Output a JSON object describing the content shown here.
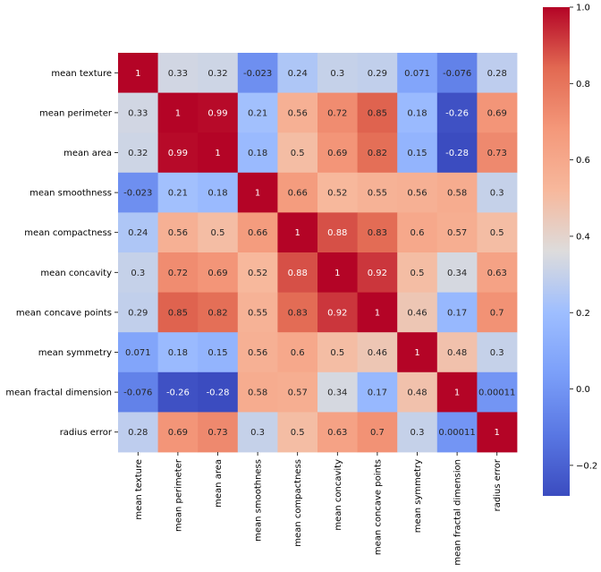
{
  "chart_data": {
    "type": "heatmap",
    "title": "",
    "xlabel": "",
    "ylabel": "",
    "colormap": "coolwarm",
    "vmin": -0.28,
    "vmax": 1.0,
    "rows": [
      "mean texture",
      "mean perimeter",
      "mean area",
      "mean smoothness",
      "mean compactness",
      "mean concavity",
      "mean concave points",
      "mean symmetry",
      "mean fractal dimension",
      "radius error"
    ],
    "columns": [
      "mean texture",
      "mean perimeter",
      "mean area",
      "mean smoothness",
      "mean compactness",
      "mean concavity",
      "mean concave points",
      "mean symmetry",
      "mean fractal dimension",
      "radius error"
    ],
    "values": [
      [
        1,
        0.33,
        0.32,
        -0.023,
        0.24,
        0.3,
        0.29,
        0.071,
        -0.076,
        0.28
      ],
      [
        0.33,
        1,
        0.99,
        0.21,
        0.56,
        0.72,
        0.85,
        0.18,
        -0.26,
        0.69
      ],
      [
        0.32,
        0.99,
        1,
        0.18,
        0.5,
        0.69,
        0.82,
        0.15,
        -0.28,
        0.73
      ],
      [
        -0.023,
        0.21,
        0.18,
        1,
        0.66,
        0.52,
        0.55,
        0.56,
        0.58,
        0.3
      ],
      [
        0.24,
        0.56,
        0.5,
        0.66,
        1,
        0.88,
        0.83,
        0.6,
        0.57,
        0.5
      ],
      [
        0.3,
        0.72,
        0.69,
        0.52,
        0.88,
        1,
        0.92,
        0.5,
        0.34,
        0.63
      ],
      [
        0.29,
        0.85,
        0.82,
        0.55,
        0.83,
        0.92,
        1,
        0.46,
        0.17,
        0.7
      ],
      [
        0.071,
        0.18,
        0.15,
        0.56,
        0.6,
        0.5,
        0.46,
        1,
        0.48,
        0.3
      ],
      [
        -0.076,
        -0.26,
        -0.28,
        0.58,
        0.57,
        0.34,
        0.17,
        0.48,
        1,
        0.00011
      ],
      [
        0.28,
        0.69,
        0.73,
        0.3,
        0.5,
        0.63,
        0.7,
        0.3,
        0.00011,
        1
      ]
    ],
    "colorbar": {
      "ticks": [
        1.0,
        0.8,
        0.6,
        0.4,
        0.2,
        0.0,
        -0.2
      ],
      "tick_labels": [
        "1.0",
        "0.8",
        "0.6",
        "0.4",
        "0.2",
        "0.0",
        "−0.2"
      ]
    }
  }
}
